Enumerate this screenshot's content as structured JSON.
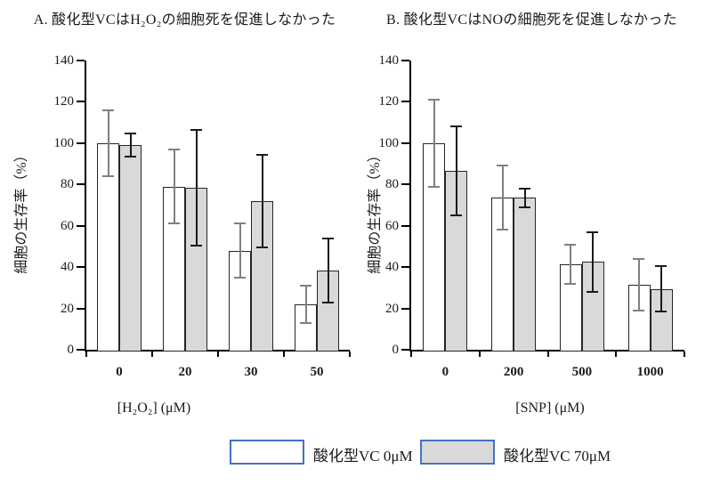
{
  "chart_data": [
    {
      "type": "bar",
      "panel": "A",
      "title": "A. 酸化型VCはH₂O₂の細胞死を促進しなかった",
      "ylabel": "細胞の生存率（%）",
      "xlabel": "[H₂O₂] (μM)",
      "categories": [
        "0",
        "20",
        "30",
        "50"
      ],
      "ylim": [
        0,
        140
      ],
      "yticks": [
        0,
        20,
        40,
        60,
        80,
        100,
        120,
        140
      ],
      "grid": false,
      "series": [
        {
          "name": "酸化型VC 0μM",
          "fill": "#ffffff",
          "values": [
            100,
            79,
            48,
            22
          ],
          "errors": [
            16,
            18,
            13,
            9
          ]
        },
        {
          "name": "酸化型VC 70μM",
          "fill": "#d9d9d9",
          "values": [
            99,
            78.5,
            72,
            38.5
          ],
          "errors": [
            5.5,
            28,
            22.5,
            15.5
          ]
        }
      ]
    },
    {
      "type": "bar",
      "panel": "B",
      "title": "B. 酸化型VCはNOの細胞死を促進しなかった",
      "ylabel": "細胞の生存率（%）",
      "xlabel": "[SNP] (μM)",
      "categories": [
        "0",
        "200",
        "500",
        "1000"
      ],
      "ylim": [
        0,
        140
      ],
      "yticks": [
        0,
        20,
        40,
        60,
        80,
        100,
        120,
        140
      ],
      "grid": false,
      "series": [
        {
          "name": "酸化型VC 0μM",
          "fill": "#ffffff",
          "values": [
            100,
            73.5,
            41.5,
            31.5
          ],
          "errors": [
            21,
            15.5,
            9.5,
            12.5
          ]
        },
        {
          "name": "酸化型VC 70μM",
          "fill": "#d9d9d9",
          "values": [
            86.5,
            73.5,
            42.5,
            29.5
          ],
          "errors": [
            21.5,
            4.5,
            14.5,
            11
          ]
        }
      ]
    }
  ],
  "legend": {
    "position": "bottom-center",
    "items": [
      {
        "label": "酸化型VC 0μM",
        "fill": "#ffffff"
      },
      {
        "label": "酸化型VC 70μM",
        "fill": "#d9d9d9"
      }
    ],
    "swatch_border": "#4472c4"
  },
  "style": {
    "axis_color": "#000000",
    "bar_border": "#262626",
    "error_color_open_series": "#808080",
    "error_color_filled_series": "#1a1a1a",
    "background": "#ffffff"
  }
}
